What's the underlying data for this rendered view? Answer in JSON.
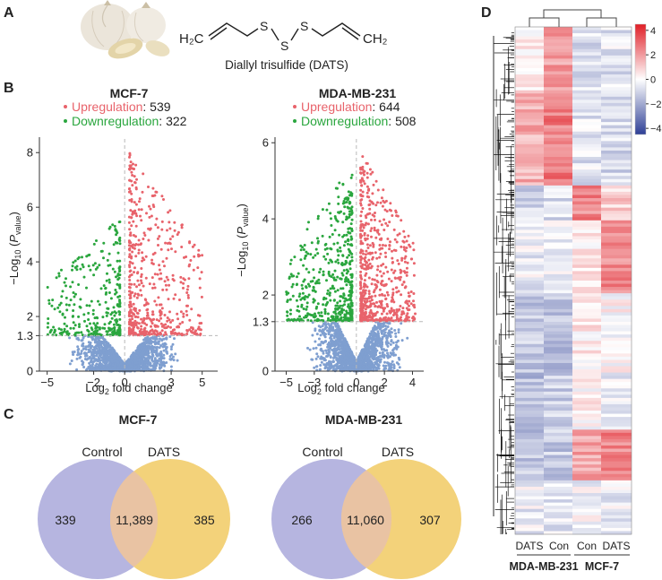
{
  "panels": {
    "A": {
      "label": "A",
      "compound_name": "Diallyl trisulfide (DATS)",
      "left_group": "H₂C",
      "right_group": "CH₂",
      "atom_s": "S"
    },
    "B": {
      "label": "B"
    },
    "C": {
      "label": "C"
    },
    "D": {
      "label": "D"
    }
  },
  "colors": {
    "up": "#e8636b",
    "down": "#2aa63e",
    "ns": "#7f9fd0",
    "venn_control": "#b6b5e0",
    "venn_dats": "#f3d27a",
    "venn_overlap": "#e9c3a3",
    "heat_high": "#e01e26",
    "heat_mid": "#ffffff",
    "heat_low": "#2e3f96"
  },
  "chart_data": [
    {
      "type": "scatter",
      "subtype": "volcano",
      "title": "MCF-7",
      "upregulation_label": "Upregulation",
      "upregulation_count": ": 539",
      "downregulation_label": "Downregulation",
      "downregulation_count": ": 322",
      "xlabel": "Log₂ fold change",
      "ylabel": "−Log₁₀ (P value)",
      "xlim": [
        -5.5,
        6.0
      ],
      "ylim": [
        0,
        8.5
      ],
      "xticks": [
        -5,
        -2,
        0,
        3,
        5
      ],
      "xtick_labels": [
        "−5",
        "−2",
        "0",
        "3",
        "5"
      ],
      "yticks": [
        0,
        1.3,
        2,
        4,
        6,
        8
      ],
      "ytick_labels": [
        "0",
        "1.3",
        "2",
        "4",
        "6",
        "8"
      ],
      "threshold_p": 1.3,
      "threshold_fc": 0,
      "seed": 17,
      "n_ns": 1500,
      "n_up": 539,
      "n_down": 322,
      "up_x_range": [
        0.3,
        5.0
      ],
      "down_x_range": [
        -5.0,
        -0.3
      ],
      "up_max_y": 8.1,
      "down_max_y": 5.6
    },
    {
      "type": "scatter",
      "subtype": "volcano",
      "title": "MDA-MB-231",
      "upregulation_label": "Upregulation",
      "upregulation_count": ": 644",
      "downregulation_label": "Downregulation",
      "downregulation_count": ": 508",
      "xlabel": "Log₂ fold change",
      "ylabel": "−Log₁₀ (P value)",
      "xlim": [
        -5.8,
        4.8
      ],
      "ylim": [
        0,
        6.1
      ],
      "xticks": [
        -5,
        -3,
        0,
        2,
        4
      ],
      "xtick_labels": [
        "−5",
        "−3",
        "0",
        "2",
        "4"
      ],
      "yticks": [
        0,
        1.3,
        2,
        4,
        6
      ],
      "ytick_labels": [
        "0",
        "1.3",
        "2",
        "4",
        "6"
      ],
      "threshold_p": 1.3,
      "threshold_fc": 0,
      "seed": 29,
      "n_ns": 1500,
      "n_up": 644,
      "n_down": 508,
      "up_x_range": [
        0.3,
        4.2
      ],
      "down_x_range": [
        -5.0,
        -0.3
      ],
      "up_max_y": 5.8,
      "down_max_y": 5.4
    },
    {
      "type": "venn",
      "title": "MCF-7",
      "left_label": "Control",
      "right_label": "DATS",
      "left_only": "339",
      "overlap": "11,389",
      "right_only": "385"
    },
    {
      "type": "venn",
      "title": "MDA-MB-231",
      "left_label": "Control",
      "right_label": "DATS",
      "left_only": "266",
      "overlap": "11,060",
      "right_only": "307"
    },
    {
      "type": "heatmap",
      "columns": [
        "DATS",
        "Con",
        "Con",
        "DATS"
      ],
      "groups": [
        "MDA-MB-231",
        "MCF-7"
      ],
      "colorbar_min": -4.5,
      "colorbar_max": 4.5,
      "colorbar_ticks": [
        4,
        2,
        0,
        -2,
        -4
      ],
      "colorbar_tick_labels": [
        "4",
        "2",
        "0",
        "−2",
        "−4"
      ],
      "n_rows": 160,
      "seed": 7,
      "profiles": [
        [
          0.4,
          1.8,
          -0.8,
          -0.6
        ],
        [
          1.6,
          2.6,
          -0.6,
          -0.9
        ],
        [
          -1.0,
          -0.7,
          2.4,
          1.0
        ],
        [
          -0.4,
          -0.3,
          0.5,
          2.3
        ],
        [
          -1.2,
          -1.5,
          0.3,
          0.1
        ],
        [
          -1.6,
          -1.2,
          0.2,
          -0.3
        ],
        [
          -1.4,
          -1.2,
          1.8,
          2.4
        ],
        [
          -0.4,
          -0.6,
          -0.2,
          -0.4
        ]
      ],
      "profile_breaks": [
        0.12,
        0.31,
        0.38,
        0.52,
        0.68,
        0.79,
        0.89,
        1.0
      ]
    }
  ]
}
